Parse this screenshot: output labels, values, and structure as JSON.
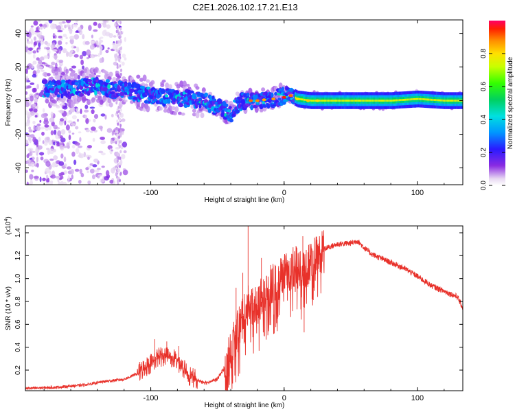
{
  "title": "C2E1.2026.102.17.21.E13",
  "chart_data": [
    {
      "type": "heatmap",
      "name": "spectrogram",
      "xlabel": "Height of straight line (km)",
      "ylabel": "Frequency (Hz)",
      "xlim": [
        -194,
        134
      ],
      "ylim": [
        -50,
        48
      ],
      "xticks": [
        -100,
        0,
        100
      ],
      "yticks": [
        -40,
        -20,
        0,
        20,
        40
      ],
      "colorbar": {
        "label": "Normalized spectral amplitude",
        "range": [
          0,
          1
        ],
        "ticks": [
          0.0,
          0.2,
          0.4,
          0.6,
          0.8
        ],
        "tick_labels": [
          "0.0",
          "0.2",
          "0.4",
          "0.6",
          "0.8"
        ]
      },
      "ridge": {
        "x": [
          -175,
          -160,
          -150,
          -140,
          -130,
          -120,
          -110,
          -100,
          -90,
          -80,
          -70,
          -60,
          -50,
          -40,
          -35,
          -30,
          -20,
          -10,
          0,
          5,
          10,
          20,
          40,
          60,
          80,
          100,
          120,
          134
        ],
        "y": [
          7,
          7,
          8,
          9,
          7,
          6,
          5,
          3,
          2,
          2,
          1,
          0,
          -4,
          -8,
          -2,
          0,
          0,
          1,
          3,
          3,
          1,
          0,
          0,
          0,
          0,
          1,
          0,
          0
        ]
      }
    },
    {
      "type": "line",
      "name": "snr",
      "xlabel": "Height of straight line (km)",
      "ylabel": "SNR (10 * v/v)",
      "y_multiplier": "(x10",
      "y_multiplier_exp": "4",
      "y_multiplier_close": ")",
      "xlim": [
        -194,
        134
      ],
      "ylim": [
        0.02,
        1.46
      ],
      "xticks": [
        -100,
        0,
        100
      ],
      "yticks": [
        0.2,
        0.4,
        0.6,
        0.8,
        1.0,
        1.2,
        1.4
      ],
      "ytick_labels": [
        "0.2",
        "0.4",
        "0.6",
        "0.8",
        "1.0",
        "1.2",
        "1.4"
      ],
      "color": "#e8312a",
      "envelope": {
        "x": [
          -194,
          -170,
          -150,
          -135,
          -120,
          -110,
          -100,
          -95,
          -88,
          -80,
          -72,
          -65,
          -58,
          -50,
          -45,
          -40,
          -35,
          -30,
          -25,
          -20,
          -15,
          -10,
          -5,
          0,
          5,
          10,
          15,
          20,
          25,
          30,
          40,
          50,
          55,
          60,
          65,
          70,
          80,
          90,
          100,
          110,
          120,
          130,
          134
        ],
        "y": [
          0.04,
          0.05,
          0.07,
          0.1,
          0.12,
          0.17,
          0.26,
          0.31,
          0.33,
          0.28,
          0.16,
          0.11,
          0.09,
          0.12,
          0.22,
          0.35,
          0.55,
          0.72,
          0.8,
          0.78,
          0.86,
          0.95,
          0.98,
          1.03,
          1.08,
          1.12,
          1.05,
          1.15,
          1.21,
          1.26,
          1.3,
          1.31,
          1.33,
          1.27,
          1.22,
          1.19,
          1.14,
          1.09,
          1.02,
          0.94,
          0.89,
          0.84,
          0.74
        ]
      },
      "spikes": [
        {
          "x": -97,
          "y": 0.47
        },
        {
          "x": -88,
          "y": 0.45
        },
        {
          "x": -79,
          "y": 0.41
        },
        {
          "x": -36,
          "y": 0.92
        },
        {
          "x": -31,
          "y": 1.05
        },
        {
          "x": -27,
          "y": 1.46
        },
        {
          "x": -17,
          "y": 1.18
        },
        {
          "x": 14,
          "y": 1.37
        },
        {
          "x": 15,
          "y": 0.53
        }
      ]
    }
  ]
}
